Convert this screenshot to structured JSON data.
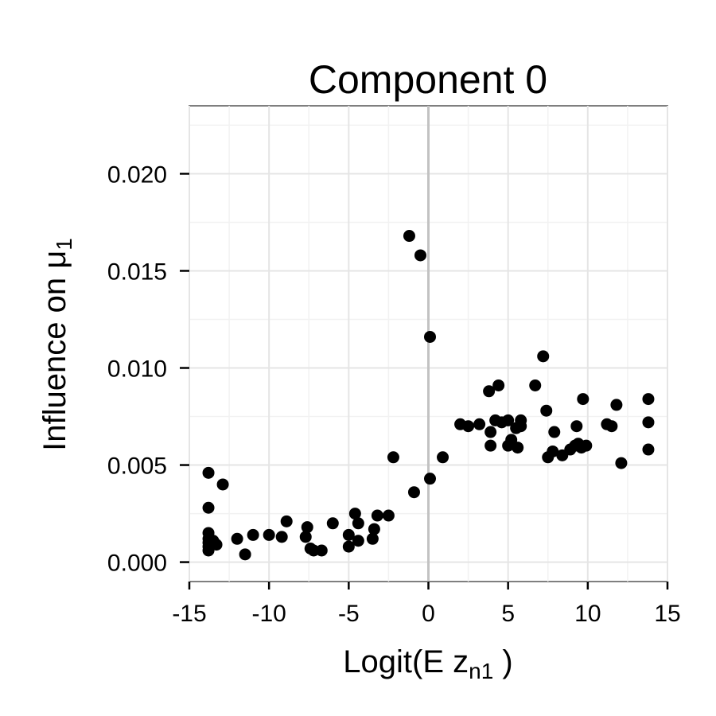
{
  "chart_data": {
    "type": "scatter",
    "title": "Component 0",
    "xlabel": {
      "main": "Logit(E z",
      "sub": "n1",
      "tail": " )"
    },
    "ylabel": {
      "main": "Influence on  μ",
      "sub": "1"
    },
    "xlim": [
      -15,
      15
    ],
    "ylim": [
      -0.001,
      0.0235
    ],
    "x_ticks": [
      -15,
      -10,
      -5,
      0,
      5,
      10,
      15
    ],
    "x_tick_labels": [
      "-15",
      "-10",
      "-5",
      "0",
      "5",
      "10",
      "15"
    ],
    "y_ticks": [
      0.0,
      0.005,
      0.01,
      0.015,
      0.02
    ],
    "y_tick_labels": [
      "0.000",
      "0.005",
      "0.010",
      "0.015",
      "0.020"
    ],
    "grid": true,
    "vline_x": 0,
    "point_color": "#000000",
    "points": [
      [
        -13.8,
        0.0046
      ],
      [
        -13.8,
        0.0028
      ],
      [
        -13.8,
        0.0015
      ],
      [
        -13.8,
        0.0012
      ],
      [
        -13.8,
        0.001
      ],
      [
        -13.8,
        0.0008
      ],
      [
        -13.8,
        0.0006
      ],
      [
        -13.5,
        0.0011
      ],
      [
        -13.3,
        0.0009
      ],
      [
        -12.9,
        0.004
      ],
      [
        -12.0,
        0.0012
      ],
      [
        -11.5,
        0.0004
      ],
      [
        -11.0,
        0.0014
      ],
      [
        -10.0,
        0.0014
      ],
      [
        -9.2,
        0.0013
      ],
      [
        -8.9,
        0.0021
      ],
      [
        -7.6,
        0.0018
      ],
      [
        -7.7,
        0.0013
      ],
      [
        -7.4,
        0.0007
      ],
      [
        -7.2,
        0.0006
      ],
      [
        -6.7,
        0.0006
      ],
      [
        -6.0,
        0.002
      ],
      [
        -5.0,
        0.0014
      ],
      [
        -5.0,
        0.0008
      ],
      [
        -4.6,
        0.0025
      ],
      [
        -4.4,
        0.002
      ],
      [
        -4.4,
        0.0011
      ],
      [
        -3.5,
        0.0012
      ],
      [
        -3.4,
        0.0017
      ],
      [
        -3.2,
        0.0024
      ],
      [
        -2.5,
        0.0024
      ],
      [
        -2.2,
        0.0054
      ],
      [
        -1.2,
        0.0168
      ],
      [
        -0.9,
        0.0036
      ],
      [
        -0.5,
        0.0158
      ],
      [
        0.1,
        0.0116
      ],
      [
        0.1,
        0.0043
      ],
      [
        0.9,
        0.0054
      ],
      [
        2.0,
        0.0071
      ],
      [
        2.5,
        0.007
      ],
      [
        3.2,
        0.0071
      ],
      [
        3.8,
        0.0088
      ],
      [
        3.9,
        0.0067
      ],
      [
        3.9,
        0.006
      ],
      [
        4.2,
        0.0073
      ],
      [
        4.4,
        0.0091
      ],
      [
        4.6,
        0.0072
      ],
      [
        5.0,
        0.0073
      ],
      [
        5.0,
        0.006
      ],
      [
        5.2,
        0.0063
      ],
      [
        5.5,
        0.0069
      ],
      [
        5.6,
        0.0059
      ],
      [
        5.8,
        0.0073
      ],
      [
        5.8,
        0.007
      ],
      [
        6.7,
        0.0091
      ],
      [
        7.2,
        0.0106
      ],
      [
        7.4,
        0.0078
      ],
      [
        7.5,
        0.0054
      ],
      [
        7.8,
        0.0057
      ],
      [
        7.9,
        0.0067
      ],
      [
        8.4,
        0.0055
      ],
      [
        8.9,
        0.0058
      ],
      [
        9.2,
        0.006
      ],
      [
        9.3,
        0.007
      ],
      [
        9.4,
        0.0061
      ],
      [
        9.6,
        0.0059
      ],
      [
        9.7,
        0.0084
      ],
      [
        9.9,
        0.006
      ],
      [
        11.2,
        0.0071
      ],
      [
        11.5,
        0.007
      ],
      [
        11.8,
        0.0081
      ],
      [
        12.1,
        0.0051
      ],
      [
        13.8,
        0.0084
      ],
      [
        13.8,
        0.0072
      ],
      [
        13.8,
        0.0058
      ]
    ]
  }
}
